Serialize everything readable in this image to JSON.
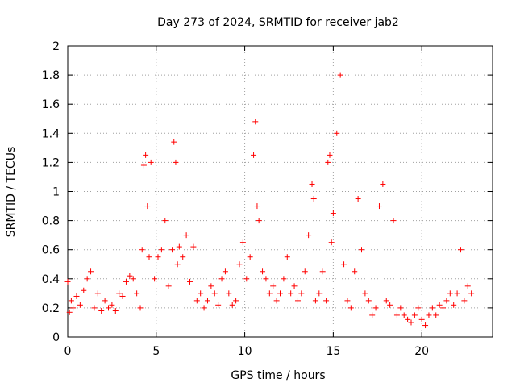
{
  "chart_data": {
    "type": "scatter",
    "title": "Day 273 of 2024, SRMTID for receiver jab2",
    "xlabel": "GPS time / hours",
    "ylabel": "SRMTID / TECUs",
    "xlim": [
      0,
      24
    ],
    "ylim": [
      0,
      2
    ],
    "grid": true,
    "marker": "+",
    "color": "#ff0000",
    "x_ticks": [
      0,
      5,
      10,
      15,
      20
    ],
    "y_ticks": [
      0,
      0.2,
      0.4,
      0.6,
      0.8,
      1,
      1.2,
      1.4,
      1.6,
      1.8,
      2
    ],
    "x_tick_labels": [
      "0",
      "5",
      "10",
      "15",
      "20"
    ],
    "y_tick_labels": [
      "0",
      "0.2",
      "0.4",
      "0.6",
      "0.8",
      "1",
      "1.2",
      "1.4",
      "1.6",
      "1.8",
      "2"
    ],
    "series": [
      {
        "name": "SRMTID",
        "x": [
          0.0,
          0.1,
          0.2,
          0.3,
          0.5,
          0.7,
          0.9,
          1.1,
          1.3,
          1.5,
          1.7,
          1.9,
          2.1,
          2.3,
          2.5,
          2.7,
          2.9,
          3.1,
          3.3,
          3.5,
          3.7,
          3.9,
          4.1,
          4.2,
          4.3,
          4.4,
          4.5,
          4.6,
          4.7,
          4.9,
          5.1,
          5.3,
          5.5,
          5.7,
          5.9,
          6.0,
          6.1,
          6.2,
          6.3,
          6.5,
          6.7,
          6.9,
          7.1,
          7.3,
          7.5,
          7.7,
          7.9,
          8.1,
          8.3,
          8.5,
          8.7,
          8.9,
          9.1,
          9.3,
          9.5,
          9.7,
          9.9,
          10.1,
          10.3,
          10.5,
          10.6,
          10.7,
          10.8,
          11.0,
          11.2,
          11.4,
          11.6,
          11.8,
          12.0,
          12.2,
          12.4,
          12.6,
          12.8,
          13.0,
          13.2,
          13.4,
          13.6,
          13.8,
          13.9,
          14.0,
          14.2,
          14.4,
          14.6,
          14.7,
          14.8,
          14.9,
          15.0,
          15.2,
          15.4,
          15.6,
          15.8,
          16.0,
          16.2,
          16.4,
          16.6,
          16.8,
          17.0,
          17.2,
          17.4,
          17.6,
          17.8,
          18.0,
          18.2,
          18.4,
          18.6,
          18.8,
          19.0,
          19.2,
          19.4,
          19.6,
          19.8,
          20.0,
          20.2,
          20.4,
          20.6,
          20.8,
          21.0,
          21.2,
          21.4,
          21.6,
          21.8,
          22.0,
          22.2,
          22.4,
          22.6,
          22.8
        ],
        "y": [
          0.38,
          0.17,
          0.25,
          0.2,
          0.28,
          0.22,
          0.32,
          0.4,
          0.45,
          0.2,
          0.3,
          0.18,
          0.25,
          0.2,
          0.22,
          0.18,
          0.3,
          0.28,
          0.38,
          0.42,
          0.4,
          0.3,
          0.2,
          0.6,
          1.18,
          1.25,
          0.9,
          0.55,
          1.2,
          0.4,
          0.55,
          0.6,
          0.8,
          0.35,
          0.6,
          1.34,
          1.2,
          0.5,
          0.62,
          0.55,
          0.7,
          0.38,
          0.62,
          0.25,
          0.3,
          0.2,
          0.25,
          0.35,
          0.3,
          0.22,
          0.4,
          0.45,
          0.3,
          0.22,
          0.25,
          0.5,
          0.65,
          0.4,
          0.55,
          1.25,
          1.48,
          0.9,
          0.8,
          0.45,
          0.4,
          0.3,
          0.35,
          0.25,
          0.3,
          0.4,
          0.55,
          0.3,
          0.35,
          0.25,
          0.3,
          0.45,
          0.7,
          1.05,
          0.95,
          0.25,
          0.3,
          0.45,
          0.25,
          1.2,
          1.25,
          0.65,
          0.85,
          1.4,
          1.8,
          0.5,
          0.25,
          0.2,
          0.45,
          0.95,
          0.6,
          0.3,
          0.25,
          0.15,
          0.2,
          0.9,
          1.05,
          0.25,
          0.22,
          0.8,
          0.15,
          0.2,
          0.15,
          0.12,
          0.1,
          0.15,
          0.2,
          0.12,
          0.08,
          0.15,
          0.2,
          0.15,
          0.22,
          0.2,
          0.25,
          0.3,
          0.22,
          0.3,
          0.6,
          0.25,
          0.35,
          0.3
        ]
      }
    ]
  }
}
